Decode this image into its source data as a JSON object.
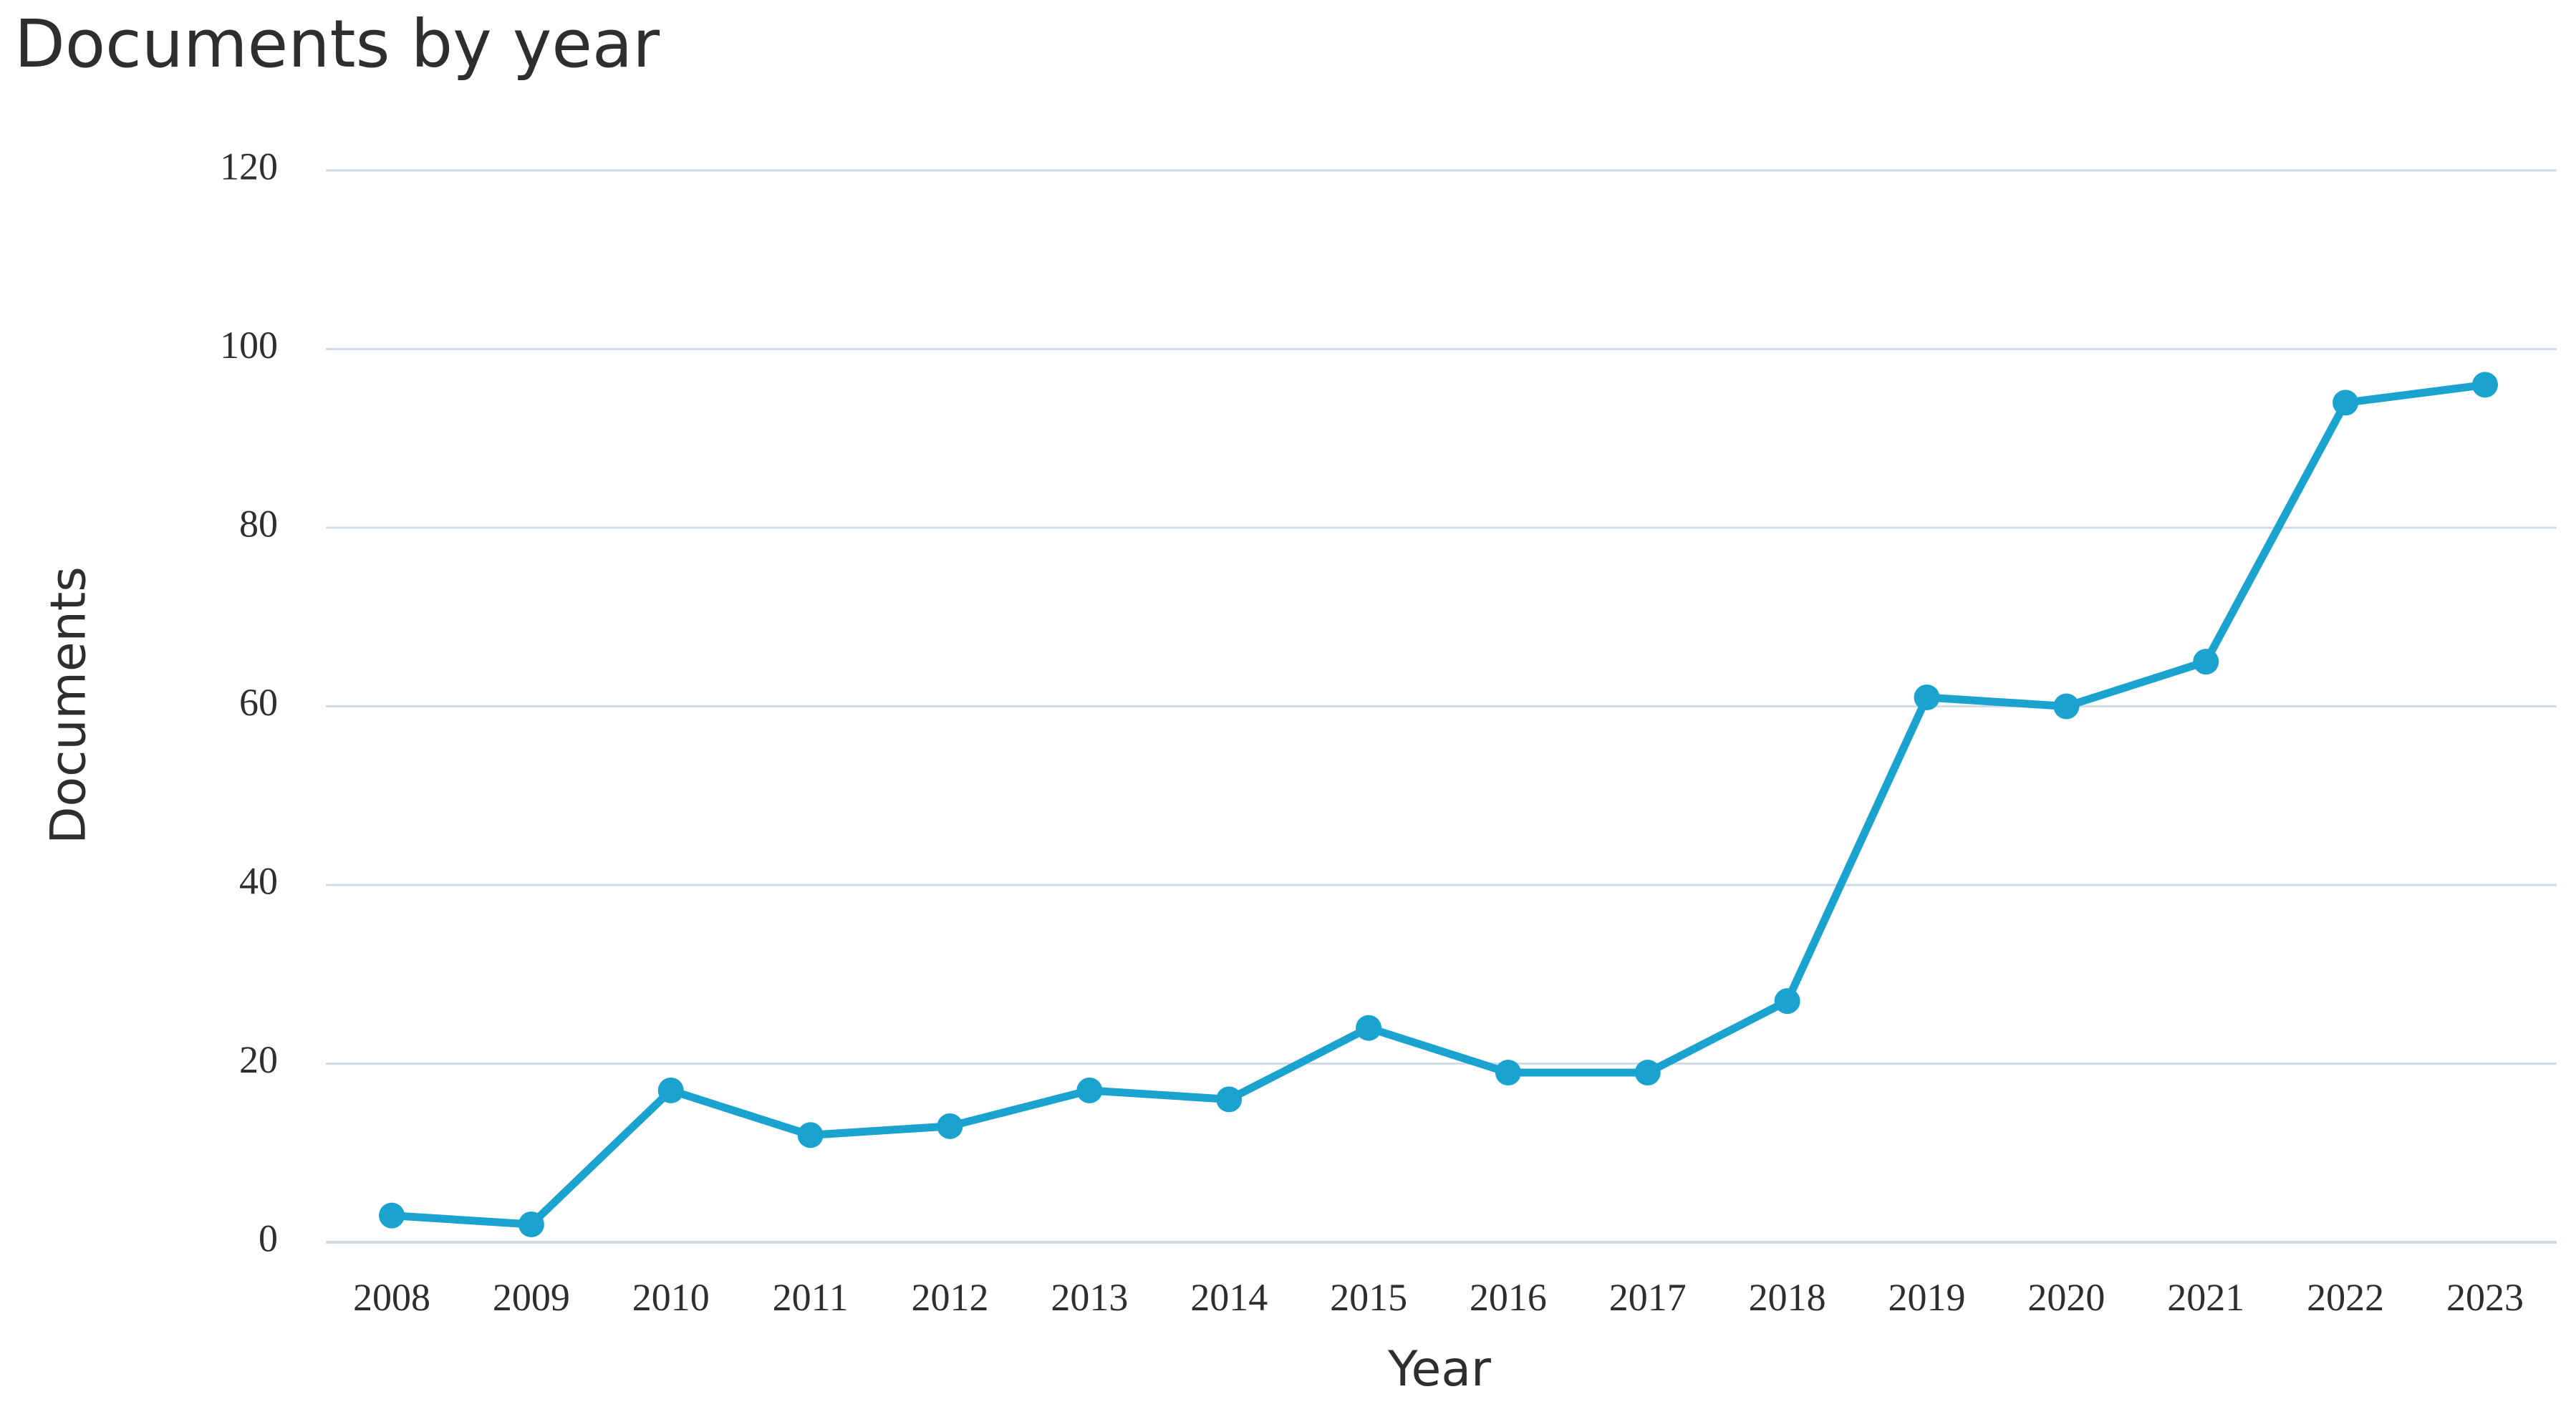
{
  "chart_data": {
    "type": "line",
    "title": "Documents by year",
    "xlabel": "Year",
    "ylabel": "Documents",
    "x": [
      "2008",
      "2009",
      "2010",
      "2011",
      "2012",
      "2013",
      "2014",
      "2015",
      "2016",
      "2017",
      "2018",
      "2019",
      "2020",
      "2021",
      "2022",
      "2023"
    ],
    "series": [
      {
        "values": [
          3,
          2,
          17,
          12,
          13,
          17,
          16,
          24,
          19,
          19,
          27,
          61,
          60,
          65,
          94,
          96
        ],
        "color": "#1aa3cf"
      }
    ],
    "ylim": [
      0,
      120
    ],
    "yticks": [
      0,
      20,
      40,
      60,
      80,
      100,
      120
    ],
    "grid": true,
    "legend": "none",
    "colors": {
      "grid": "#cfdbe6",
      "text": "#2e2e2e"
    }
  }
}
